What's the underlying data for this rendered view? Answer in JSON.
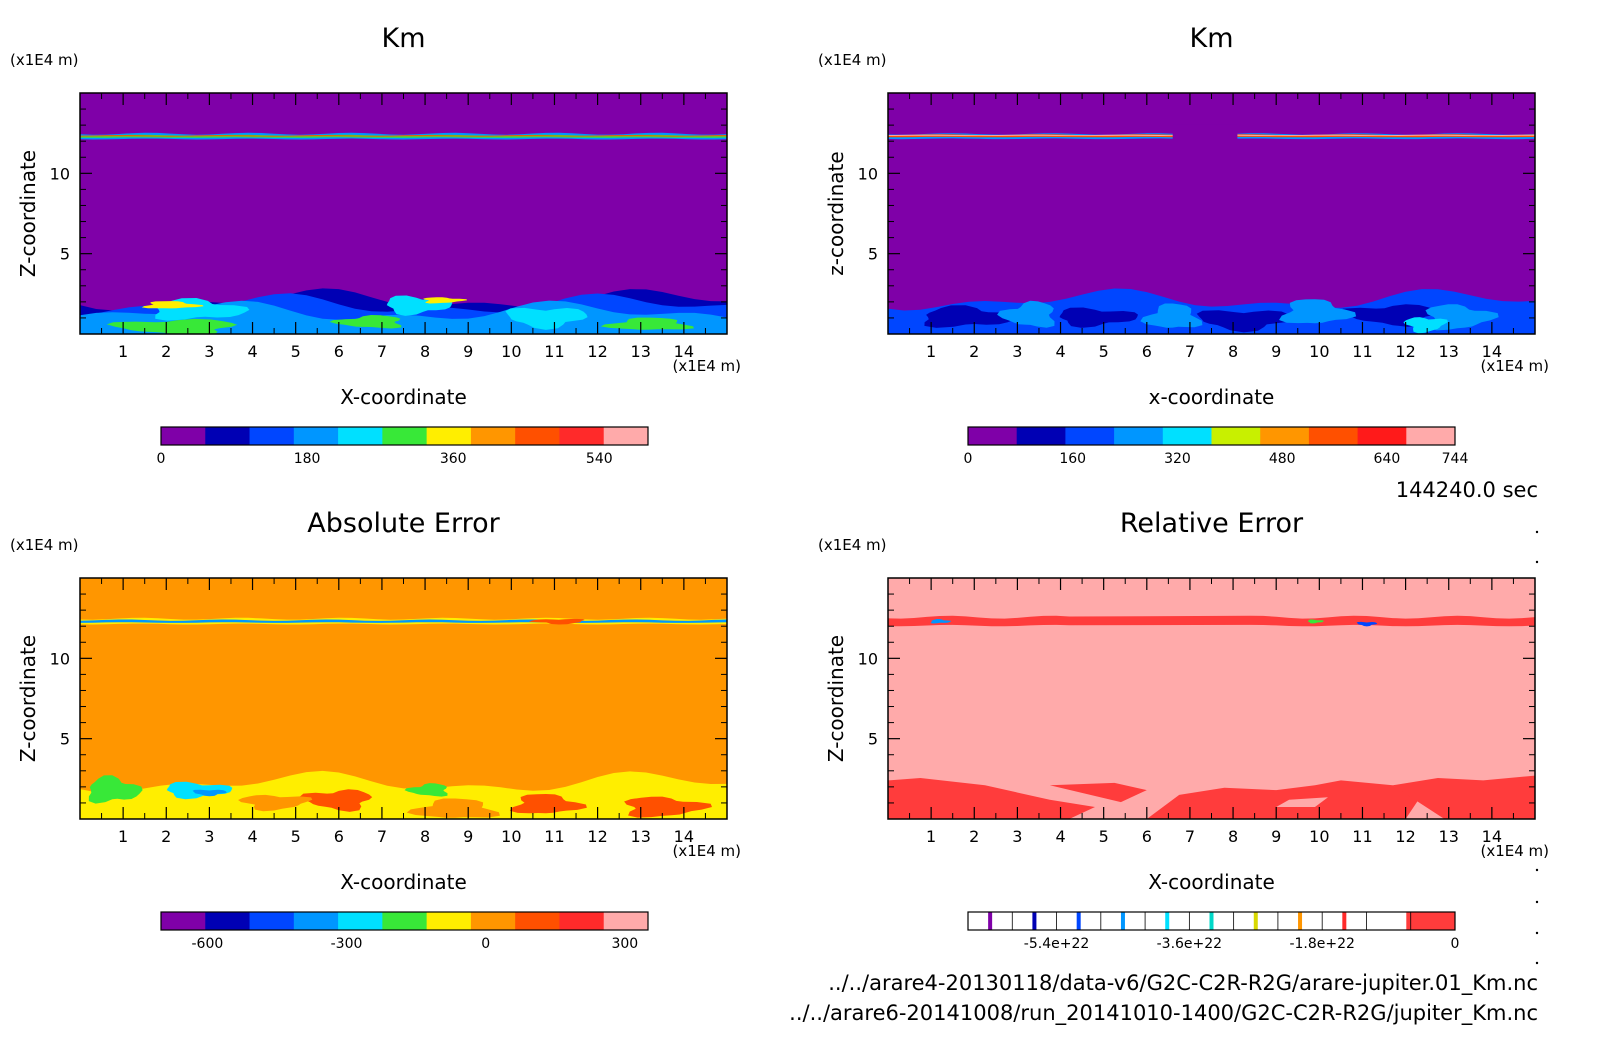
{
  "time_label": "144240.0 sec",
  "files": [
    "../../arare4-20130118/data-v6/G2C-C2R-R2G/arare-jupiter.01_Km.nc",
    "../../arare6-20141008/run_20141010-1400/G2C-C2R-R2G/jupiter_Km.nc"
  ],
  "chart_data": [
    {
      "type": "heatmap",
      "title": "Km",
      "xlabel": "X-coordinate",
      "ylabel": "Z-coordinate",
      "x_unit": "(x1E4 m)",
      "y_unit": "(x1E4 m)",
      "xlim": [
        0,
        15
      ],
      "ylim": [
        0,
        15
      ],
      "x_ticks": [
        1,
        2,
        3,
        4,
        5,
        6,
        7,
        8,
        9,
        10,
        11,
        12,
        13,
        14
      ],
      "y_ticks": [
        5,
        10
      ],
      "background_color": "#7f00a8",
      "colorbar": {
        "levels": [
          0,
          60,
          120,
          180,
          240,
          300,
          360,
          420,
          480,
          540,
          600
        ],
        "labels": [
          "0",
          "180",
          "360",
          "540"
        ],
        "label_values": [
          0,
          180,
          360,
          540
        ],
        "colors": [
          "#7f00a8",
          "#0000b4",
          "#0046ff",
          "#0096ff",
          "#00e0ff",
          "#38e838",
          "#ffee00",
          "#ff9600",
          "#ff5000",
          "#ff2a2a",
          "#ffaaaa"
        ]
      }
    },
    {
      "type": "heatmap",
      "title": "Km",
      "xlabel": "x-coordinate",
      "ylabel": "z-coordinate",
      "x_unit": "(x1E4 m)",
      "y_unit": "(x1E4 m)",
      "xlim": [
        0,
        15
      ],
      "ylim": [
        0,
        15
      ],
      "x_ticks": [
        1,
        2,
        3,
        4,
        5,
        6,
        7,
        8,
        9,
        10,
        11,
        12,
        13,
        14
      ],
      "y_ticks": [
        5,
        10
      ],
      "background_color": "#7f00a8",
      "colorbar": {
        "levels": [
          0,
          80,
          160,
          240,
          320,
          400,
          480,
          560,
          640,
          720,
          744
        ],
        "labels": [
          "0",
          "160",
          "320",
          "480",
          "640",
          "744"
        ],
        "label_values": [
          0,
          160,
          320,
          480,
          640,
          744
        ],
        "colors": [
          "#7f00a8",
          "#0000b4",
          "#0046ff",
          "#0096ff",
          "#00e0ff",
          "#c8f000",
          "#ff9600",
          "#ff5000",
          "#ff1a1a",
          "#ffaaaa"
        ]
      }
    },
    {
      "type": "heatmap",
      "title": "Absolute Error",
      "xlabel": "X-coordinate",
      "ylabel": "Z-coordinate",
      "x_unit": "(x1E4 m)",
      "y_unit": "(x1E4 m)",
      "xlim": [
        0,
        15
      ],
      "ylim": [
        0,
        15
      ],
      "x_ticks": [
        1,
        2,
        3,
        4,
        5,
        6,
        7,
        8,
        9,
        10,
        11,
        12,
        13,
        14
      ],
      "y_ticks": [
        5,
        10
      ],
      "background_color": "#ff9600",
      "colorbar": {
        "levels": [
          -700,
          -600,
          -500,
          -400,
          -300,
          -200,
          -100,
          0,
          100,
          200,
          300,
          350
        ],
        "labels": [
          "-600",
          "-300",
          "0",
          "300"
        ],
        "label_values": [
          -600,
          -300,
          0,
          300
        ],
        "colors": [
          "#7f00a8",
          "#0000b4",
          "#0046ff",
          "#0096ff",
          "#00e0ff",
          "#38e838",
          "#ffee00",
          "#ff9600",
          "#ff5000",
          "#ff2a2a",
          "#ffaaaa"
        ]
      }
    },
    {
      "type": "heatmap",
      "title": "Relative Error",
      "xlabel": "X-coordinate",
      "ylabel": "Z-coordinate",
      "x_unit": "(x1E4 m)",
      "y_unit": "(x1E4 m)",
      "xlim": [
        0,
        15
      ],
      "ylim": [
        0,
        15
      ],
      "x_ticks": [
        1,
        2,
        3,
        4,
        5,
        6,
        7,
        8,
        9,
        10,
        11,
        12,
        13,
        14
      ],
      "y_ticks": [
        5,
        10
      ],
      "background_color": "#ffaaaa",
      "colorbar": {
        "levels": [
          -6.6e+22,
          0
        ],
        "labels": [
          "-5.4e+22",
          "-3.6e+22",
          "-1.8e+22",
          "0"
        ],
        "label_values": [
          -5.4e+22,
          -3.6e+22,
          -1.8e+22,
          0
        ],
        "colors": [
          "#7f00a8",
          "#0000b4",
          "#0046ff",
          "#0096ff",
          "#00e0ff",
          "#00d8c8",
          "#d8d800",
          "#ff9600",
          "#ff2a2a",
          "#ff3c3c"
        ]
      }
    }
  ]
}
